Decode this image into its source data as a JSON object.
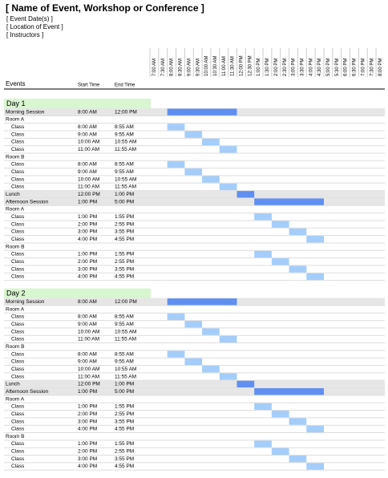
{
  "header": {
    "title": "[ Name of Event, Workshop or Conference ]",
    "lines": [
      "[ Event Date(s) ]",
      "[ Location of Event ]",
      "[ Instructors ]"
    ]
  },
  "columns": {
    "event": "Events",
    "start": "Start Time",
    "end": "End Time"
  },
  "times": [
    "7:00 AM",
    "7:30 AM",
    "8:00 AM",
    "8:30 AM",
    "9:00 AM",
    "9:30 AM",
    "10:00 AM",
    "10:30 AM",
    "11:00 AM",
    "11:30 AM",
    "12:00 PM",
    "12:30 PM",
    "1:00 PM",
    "1:30 PM",
    "2:00 PM",
    "2:30 PM",
    "3:00 PM",
    "3:30 PM",
    "4:00 PM",
    "4:30 PM",
    "5:00 PM",
    "5:30 PM",
    "6:00 PM",
    "6:30 PM",
    "7:00 PM",
    "7:30 PM",
    "8:00 PM"
  ],
  "days": [
    {
      "label": "Day 1",
      "sessions": [
        {
          "event": "Morning Session",
          "start": "8:00 AM",
          "end": "12:00 PM",
          "rooms": [
            {
              "name": "Room A",
              "classes": [
                {
                  "event": "Class",
                  "start": "8:00 AM",
                  "end": "8:55 AM"
                },
                {
                  "event": "Class",
                  "start": "9:00 AM",
                  "end": "9:55 AM"
                },
                {
                  "event": "Class",
                  "start": "10:00 AM",
                  "end": "10:55 AM"
                },
                {
                  "event": "Class",
                  "start": "11:00 AM",
                  "end": "11:55 AM"
                }
              ]
            },
            {
              "name": "Room B",
              "classes": [
                {
                  "event": "Class",
                  "start": "8:00 AM",
                  "end": "8:55 AM"
                },
                {
                  "event": "Class",
                  "start": "9:00 AM",
                  "end": "9:55 AM"
                },
                {
                  "event": "Class",
                  "start": "10:00 AM",
                  "end": "10:55 AM"
                },
                {
                  "event": "Class",
                  "start": "11:00 AM",
                  "end": "11:55 AM"
                }
              ]
            }
          ]
        },
        {
          "event": "Lunch",
          "start": "12:00 PM",
          "end": "1:00 PM"
        },
        {
          "event": "Afternoon Session",
          "start": "1:00 PM",
          "end": "5:00 PM",
          "rooms": [
            {
              "name": "Room A",
              "classes": [
                {
                  "event": "Class",
                  "start": "1:00 PM",
                  "end": "1:55 PM"
                },
                {
                  "event": "Class",
                  "start": "2:00 PM",
                  "end": "2:55 PM"
                },
                {
                  "event": "Class",
                  "start": "3:00 PM",
                  "end": "3:55 PM"
                },
                {
                  "event": "Class",
                  "start": "4:00 PM",
                  "end": "4:55 PM"
                }
              ]
            },
            {
              "name": "Room B",
              "classes": [
                {
                  "event": "Class",
                  "start": "1:00 PM",
                  "end": "1:55 PM"
                },
                {
                  "event": "Class",
                  "start": "2:00 PM",
                  "end": "2:55 PM"
                },
                {
                  "event": "Class",
                  "start": "3:00 PM",
                  "end": "3:55 PM"
                },
                {
                  "event": "Class",
                  "start": "4:00 PM",
                  "end": "4:55 PM"
                }
              ]
            }
          ]
        }
      ]
    },
    {
      "label": "Day 2",
      "sessions": [
        {
          "event": "Morning Session",
          "start": "8:00 AM",
          "end": "12:00 PM",
          "rooms": [
            {
              "name": "Room A",
              "classes": [
                {
                  "event": "Class",
                  "start": "8:00 AM",
                  "end": "8:55 AM"
                },
                {
                  "event": "Class",
                  "start": "9:00 AM",
                  "end": "9:55 AM"
                },
                {
                  "event": "Class",
                  "start": "10:00 AM",
                  "end": "10:55 AM"
                },
                {
                  "event": "Class",
                  "start": "11:00 AM",
                  "end": "11:55 AM"
                }
              ]
            },
            {
              "name": "Room B",
              "classes": [
                {
                  "event": "Class",
                  "start": "8:00 AM",
                  "end": "8:55 AM"
                },
                {
                  "event": "Class",
                  "start": "9:00 AM",
                  "end": "9:55 AM"
                },
                {
                  "event": "Class",
                  "start": "10:00 AM",
                  "end": "10:55 AM"
                },
                {
                  "event": "Class",
                  "start": "11:00 AM",
                  "end": "11:55 AM"
                }
              ]
            }
          ]
        },
        {
          "event": "Lunch",
          "start": "12:00 PM",
          "end": "1:00 PM"
        },
        {
          "event": "Afternoon Session",
          "start": "1:00 PM",
          "end": "5:00 PM",
          "rooms": [
            {
              "name": "Room A",
              "classes": [
                {
                  "event": "Class",
                  "start": "1:00 PM",
                  "end": "1:55 PM"
                },
                {
                  "event": "Class",
                  "start": "2:00 PM",
                  "end": "2:55 PM"
                },
                {
                  "event": "Class",
                  "start": "3:00 PM",
                  "end": "3:55 PM"
                },
                {
                  "event": "Class",
                  "start": "4:00 PM",
                  "end": "4:55 PM"
                }
              ]
            },
            {
              "name": "Room B",
              "classes": [
                {
                  "event": "Class",
                  "start": "1:00 PM",
                  "end": "1:55 PM"
                },
                {
                  "event": "Class",
                  "start": "2:00 PM",
                  "end": "2:55 PM"
                },
                {
                  "event": "Class",
                  "start": "3:00 PM",
                  "end": "3:55 PM"
                },
                {
                  "event": "Class",
                  "start": "4:00 PM",
                  "end": "4:55 PM"
                }
              ]
            }
          ]
        }
      ]
    }
  ]
}
